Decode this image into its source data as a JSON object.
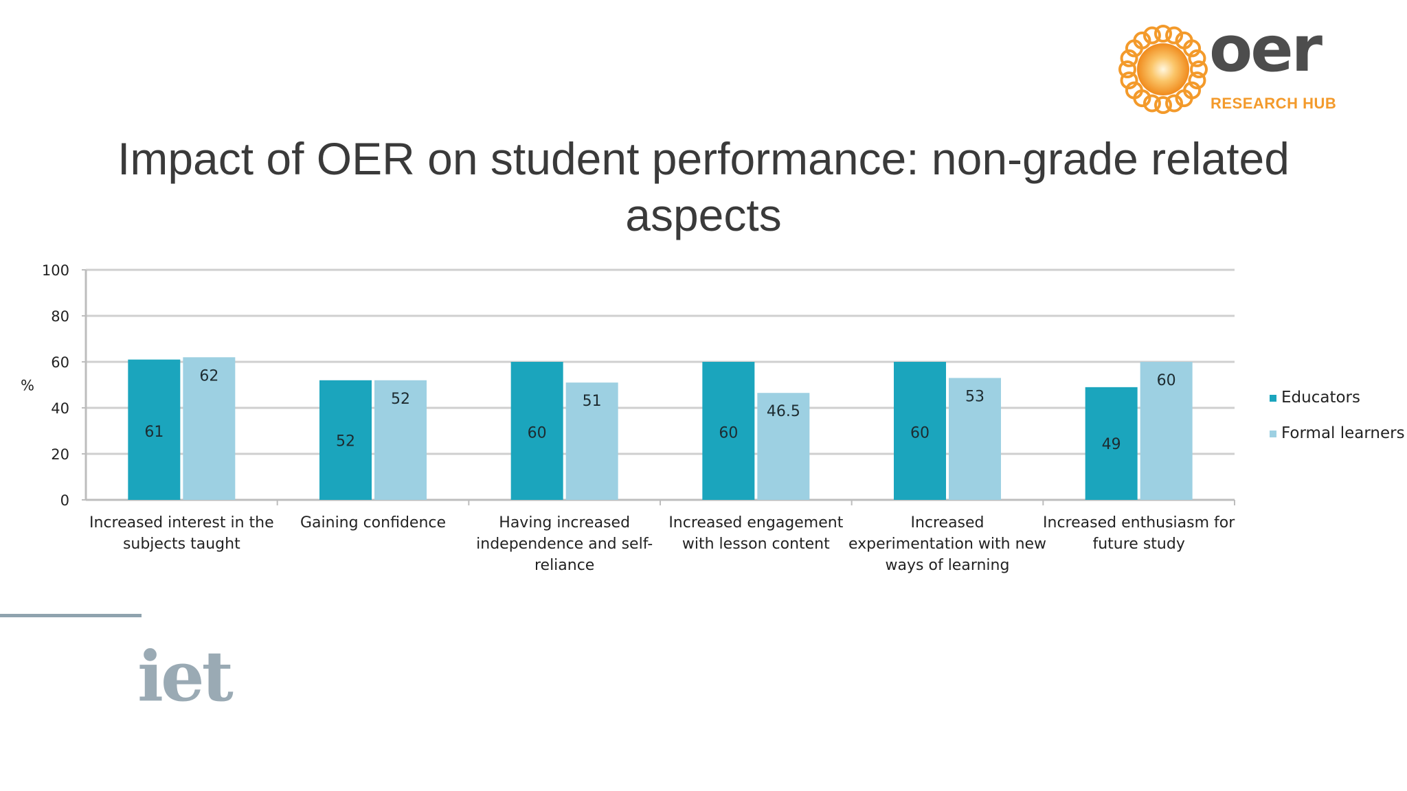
{
  "logos": {
    "oer_word": "oer",
    "oer_sub": "RESEARCH HUB",
    "iet_word": "iet"
  },
  "slide": {
    "title": "Impact of OER on student performance: non-grade related aspects"
  },
  "colors": {
    "educators": "#1ba5bd",
    "formal_learners": "#9dd0e2",
    "accent_orange": "#f39a2b"
  },
  "chart_data": {
    "type": "bar",
    "title": "",
    "xlabel": "",
    "ylabel": "%",
    "ylim": [
      0,
      100
    ],
    "yticks": [
      0,
      20,
      40,
      60,
      80,
      100
    ],
    "grid": true,
    "legend_position": "right",
    "categories": [
      [
        "Increased interest in the",
        "subjects taught"
      ],
      [
        "Gaining confidence"
      ],
      [
        "Having increased",
        "independence and self-",
        "reliance"
      ],
      [
        "Increased engagement",
        "with lesson content"
      ],
      [
        "Increased",
        "experimentation with new",
        "ways of learning"
      ],
      [
        "Increased enthusiasm for",
        "future study"
      ]
    ],
    "series": [
      {
        "name": "Educators",
        "values": [
          61,
          52,
          60,
          60,
          60,
          49
        ],
        "labels": [
          "61",
          "52",
          "60",
          "60",
          "60",
          "49"
        ]
      },
      {
        "name": "Formal learners",
        "values": [
          62,
          52,
          51,
          46.5,
          53,
          60
        ],
        "labels": [
          "62",
          "52",
          "51",
          "46.5",
          "53",
          "60"
        ]
      }
    ]
  }
}
